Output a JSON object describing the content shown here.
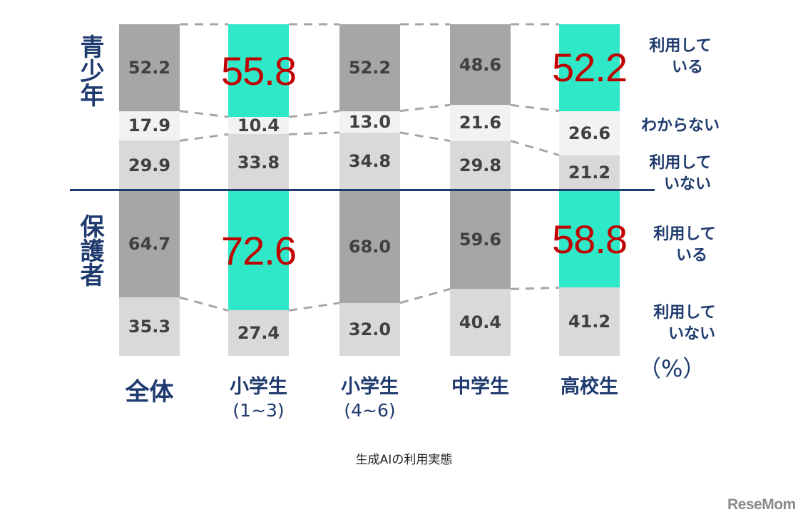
{
  "chart_data": {
    "type": "bar",
    "subtype": "100% stacked bar (two panels)",
    "title": "生成AIの利用実態",
    "unit": "（%）",
    "categories": [
      "全体",
      "小学生（1~3）",
      "小学生（4~6）",
      "中学生",
      "高校生"
    ],
    "panels": [
      {
        "name": "青少年",
        "series": [
          {
            "name": "利用している",
            "values": [
              52.2,
              55.8,
              52.2,
              48.6,
              52.2
            ]
          },
          {
            "name": "わからない",
            "values": [
              17.9,
              10.4,
              13.0,
              21.6,
              26.6
            ]
          },
          {
            "name": "利用していない",
            "values": [
              29.9,
              33.8,
              34.8,
              29.8,
              21.2
            ]
          }
        ],
        "highlighted": [
          1,
          4
        ]
      },
      {
        "name": "保護者",
        "series": [
          {
            "name": "利用している",
            "values": [
              64.7,
              72.6,
              68.0,
              59.6,
              58.8
            ]
          },
          {
            "name": "利用していない",
            "values": [
              35.3,
              27.4,
              32.0,
              40.4,
              41.2
            ]
          }
        ],
        "highlighted": [
          1,
          4
        ]
      }
    ],
    "colors": {
      "using": "#a6a6a6",
      "unknown": "#f2f2f2",
      "not_using": "#d9d9d9",
      "highlight": "#2ee8c8",
      "highlight_text": "#c00000",
      "label": "#1f3a6e"
    },
    "ylim": [
      0,
      100
    ],
    "grid": false,
    "legend_position": "right"
  },
  "labels": {
    "panel_top": "青少年",
    "panel_bottom": "保護者",
    "categories": [
      {
        "line1": "全体",
        "line2": ""
      },
      {
        "line1": "小学生",
        "line2": "(1~3)"
      },
      {
        "line1": "小学生",
        "line2": "(4~6)"
      },
      {
        "line1": "中学生",
        "line2": ""
      },
      {
        "line1": "高校生",
        "line2": ""
      }
    ],
    "legend_top": [
      {
        "line1": "利用して",
        "line2": "いる"
      },
      {
        "line1": "わからない",
        "line2": ""
      },
      {
        "line1": "利用して",
        "line2": "いない"
      }
    ],
    "legend_bottom": [
      {
        "line1": "利用して",
        "line2": "いる"
      },
      {
        "line1": "利用して",
        "line2": "いない"
      }
    ],
    "unit": "（%）",
    "caption": "生成AIの利用実態",
    "logo": "ReseMom"
  }
}
